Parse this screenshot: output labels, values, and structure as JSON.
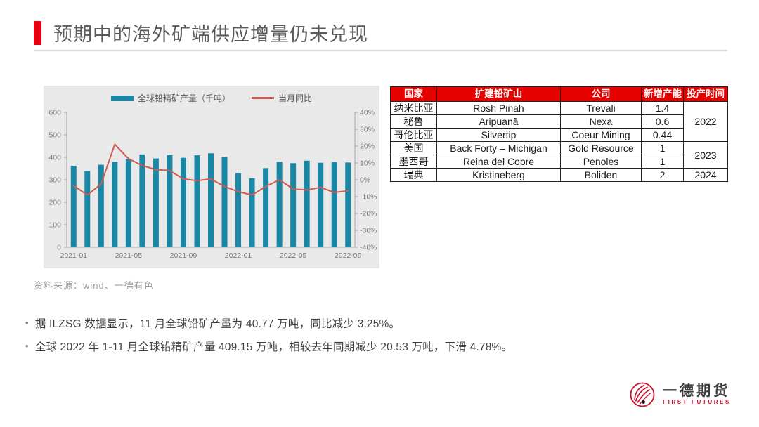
{
  "title": "预期中的海外矿端供应增量仍未兑现",
  "colors": {
    "accent_red": "#e60012",
    "table_header_red": "#e60000",
    "bar_teal": "#1a87a5",
    "line_red": "#cf5b52",
    "chart_bg": "#e9e9e9",
    "axis_text": "#7a7a7a"
  },
  "chart_data": {
    "type": "bar",
    "subtype": "bar+line dual axis",
    "x": [
      "2021-01",
      "2021-02",
      "2021-03",
      "2021-04",
      "2021-05",
      "2021-06",
      "2021-07",
      "2021-08",
      "2021-09",
      "2021-10",
      "2021-11",
      "2021-12",
      "2022-01",
      "2022-02",
      "2022-03",
      "2022-04",
      "2022-05",
      "2022-06",
      "2022-07",
      "2022-08",
      "2022-09"
    ],
    "series": [
      {
        "name": "全球铅精矿产量（千吨）",
        "type": "bar",
        "axis": "left",
        "values": [
          362,
          340,
          367,
          380,
          392,
          413,
          395,
          410,
          398,
          409,
          418,
          402,
          330,
          307,
          352,
          380,
          374,
          385,
          376,
          379,
          377
        ]
      },
      {
        "name": "当月同比",
        "type": "line",
        "axis": "right",
        "values": [
          -3.5,
          -9,
          -2.5,
          21,
          12.5,
          8.5,
          6,
          5.5,
          0.5,
          -0.5,
          0.5,
          -4,
          -7,
          -9,
          -4,
          0,
          -5.5,
          -6,
          -4.5,
          -7.5,
          -6.5
        ]
      }
    ],
    "left_axis": {
      "min": 0,
      "max": 600,
      "step": 100
    },
    "right_axis": {
      "min": -40,
      "max": 40,
      "step": 10,
      "suffix": "%"
    },
    "x_tick_labels": [
      "2021-01",
      "2021-05",
      "2021-09",
      "2022-01",
      "2022-05",
      "2022-09"
    ],
    "legend_position": "top",
    "grid": false
  },
  "table": {
    "headers": [
      "国家",
      "扩建铅矿山",
      "公司",
      "新增产能",
      "投产时间"
    ],
    "rows": [
      {
        "country": "纳米比亚",
        "mine": "Rosh Pinah",
        "company": "Trevali",
        "capacity": "1.4",
        "year": "2022"
      },
      {
        "country": "秘鲁",
        "mine": "Aripuanã",
        "company": "Nexa",
        "capacity": "0.6"
      },
      {
        "country": "哥伦比亚",
        "mine": "Silvertip",
        "company": "Coeur Mining",
        "capacity": "0.44"
      },
      {
        "country": "美国",
        "mine": "Back Forty – Michigan",
        "company": "Gold Resource",
        "capacity": "1",
        "year": "2023"
      },
      {
        "country": "墨西哥",
        "mine": "Reina del Cobre",
        "company": "Penoles",
        "capacity": "1"
      },
      {
        "country": "瑞典",
        "mine": "Kristineberg",
        "company": "Boliden",
        "capacity": "2",
        "year": "2024"
      }
    ]
  },
  "source": "资料来源：wind、一德有色",
  "bullets": [
    "据 ILZSG 数据显示，11 月全球铅矿产量为 40.77 万吨，同比减少 3.25%。",
    "全球 2022 年 1-11 月全球铅精矿产量 409.15 万吨，相较去年同期减少 20.53 万吨，下滑 4.78%。"
  ],
  "logo": {
    "name_cn": "一德期货",
    "name_en": "FIRST FUTURES"
  }
}
